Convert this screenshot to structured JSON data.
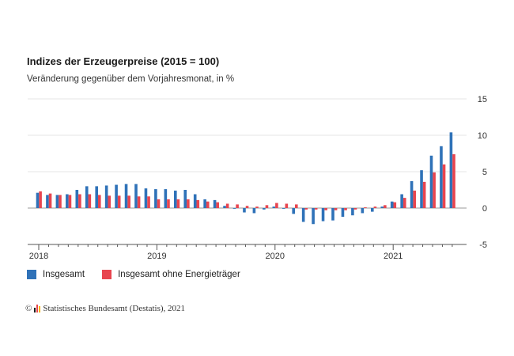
{
  "chart_data": {
    "type": "bar",
    "title": "Indizes der Erzeugerpreise (2015 = 100)",
    "subtitle": "Veränderung gegenüber dem Vorjahresmonat, in %",
    "x_tick_labels": [
      "2018",
      "2019",
      "2020",
      "2021"
    ],
    "ylim": [
      -5,
      15
    ],
    "y_ticks": [
      -5,
      0,
      5,
      10,
      15
    ],
    "grid": true,
    "legend_position": "bottom-left",
    "categories": [
      "Jan 2018",
      "Feb 2018",
      "Mär 2018",
      "Apr 2018",
      "Mai 2018",
      "Jun 2018",
      "Jul 2018",
      "Aug 2018",
      "Sep 2018",
      "Okt 2018",
      "Nov 2018",
      "Dez 2018",
      "Jan 2019",
      "Feb 2019",
      "Mär 2019",
      "Apr 2019",
      "Mai 2019",
      "Jun 2019",
      "Jul 2019",
      "Aug 2019",
      "Sep 2019",
      "Okt 2019",
      "Nov 2019",
      "Dez 2019",
      "Jan 2020",
      "Feb 2020",
      "Mär 2020",
      "Apr 2020",
      "Mai 2020",
      "Jun 2020",
      "Jul 2020",
      "Aug 2020",
      "Sep 2020",
      "Okt 2020",
      "Nov 2020",
      "Dez 2020",
      "Jan 2021",
      "Feb 2021",
      "Mär 2021",
      "Apr 2021",
      "Mai 2021",
      "Jun 2021",
      "Jul 2021"
    ],
    "series": [
      {
        "name": "Insgesamt",
        "color": "#2f72b8",
        "values": [
          2.1,
          1.8,
          1.8,
          1.9,
          2.5,
          3.0,
          3.0,
          3.1,
          3.2,
          3.3,
          3.3,
          2.7,
          2.6,
          2.6,
          2.4,
          2.5,
          1.9,
          1.2,
          1.1,
          0.3,
          -0.1,
          -0.6,
          -0.7,
          -0.2,
          0.2,
          -0.1,
          -0.8,
          -1.9,
          -2.2,
          -1.8,
          -1.7,
          -1.2,
          -1.0,
          -0.7,
          -0.5,
          0.2,
          0.9,
          1.9,
          3.7,
          5.2,
          7.2,
          8.5,
          10.4
        ]
      },
      {
        "name": "Insgesamt ohne Energieträger",
        "color": "#e8454f",
        "values": [
          2.3,
          2.0,
          1.8,
          1.8,
          1.9,
          1.9,
          1.8,
          1.7,
          1.7,
          1.7,
          1.6,
          1.6,
          1.2,
          1.2,
          1.2,
          1.2,
          1.1,
          0.9,
          0.8,
          0.6,
          0.5,
          0.3,
          0.2,
          0.4,
          0.7,
          0.6,
          0.5,
          -0.2,
          -0.2,
          -0.3,
          -0.3,
          -0.3,
          -0.2,
          0.1,
          0.2,
          0.4,
          0.8,
          1.4,
          2.4,
          3.6,
          4.9,
          6.0,
          7.4
        ]
      }
    ]
  },
  "legend": {
    "items": [
      {
        "label": "Insgesamt",
        "color": "#2f72b8"
      },
      {
        "label": "Insgesamt ohne Energieträger",
        "color": "#e8454f"
      }
    ]
  },
  "source": {
    "text": "Statistisches Bundesamt (Destatis), 2021",
    "copyright": "©"
  }
}
